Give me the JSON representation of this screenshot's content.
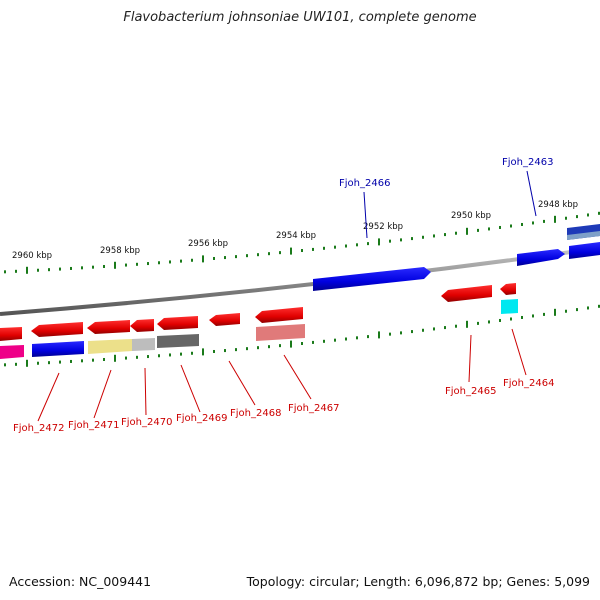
{
  "title": "Flavobacterium johnsoniae UW101, complete genome",
  "footer": {
    "accession": "Accession: NC_009441",
    "topology": "Topology: circular; Length: 6,096,872 bp; Genes: 5,099"
  },
  "scale_labels": [
    "2960 kbp",
    "2958 kbp",
    "2956 kbp",
    "2954 kbp",
    "2952 kbp",
    "2950 kbp",
    "2948 kbp"
  ],
  "gene_labels": [
    {
      "text": "Fjoh_2466",
      "strand": "forward"
    },
    {
      "text": "Fjoh_2463",
      "strand": "forward"
    },
    {
      "text": "Fjoh_2472",
      "strand": "reverse"
    },
    {
      "text": "Fjoh_2471",
      "strand": "reverse"
    },
    {
      "text": "Fjoh_2470",
      "strand": "reverse"
    },
    {
      "text": "Fjoh_2469",
      "strand": "reverse"
    },
    {
      "text": "Fjoh_2468",
      "strand": "reverse"
    },
    {
      "text": "Fjoh_2467",
      "strand": "reverse"
    },
    {
      "text": "Fjoh_2465",
      "strand": "reverse"
    },
    {
      "text": "Fjoh_2464",
      "strand": "reverse"
    }
  ],
  "colors": {
    "forward_gene": "#0000ee",
    "reverse_gene": "#ee0000",
    "forward_label": "#0000aa",
    "reverse_label": "#cc0000",
    "tick": "#1a7a1a",
    "backbone": "#888888"
  }
}
